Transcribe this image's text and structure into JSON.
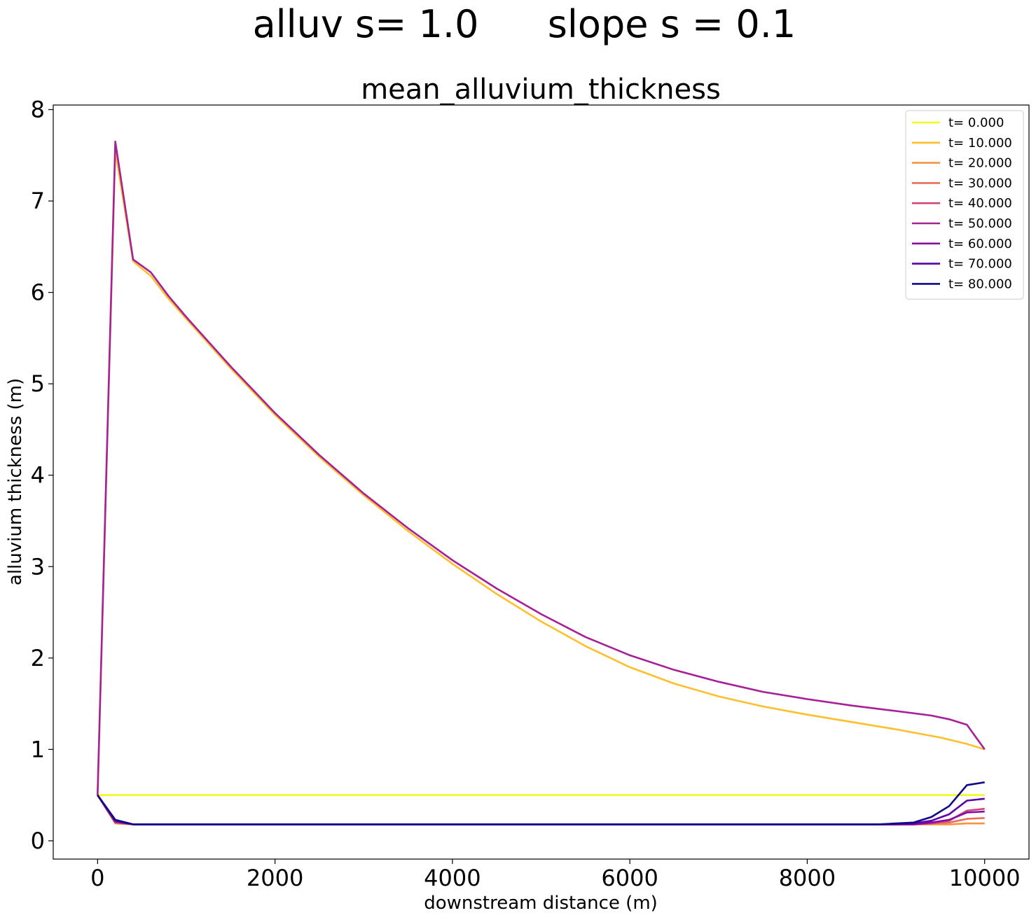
{
  "figure": {
    "suptitle_left": "alluv s= 1.0",
    "suptitle_right": "slope s = 0.1"
  },
  "chart_data": {
    "type": "line",
    "title": "mean_alluvium_thickness",
    "xlabel": "downstream distance (m)",
    "ylabel": "alluvium thickness (m)",
    "xlim": [
      -500,
      10500
    ],
    "ylim": [
      -0.2,
      8.05
    ],
    "xticks": [
      0,
      2000,
      4000,
      6000,
      8000,
      10000
    ],
    "yticks": [
      0,
      1,
      2,
      3,
      4,
      5,
      6,
      7,
      8
    ],
    "grid": false,
    "legend_position": "top-right",
    "series": [
      {
        "name": "t= 0.000",
        "color": "#f0f921",
        "x": [
          0,
          200,
          1000,
          5000,
          9000,
          9600,
          10000
        ],
        "y": [
          0.5,
          0.5,
          0.5,
          0.5,
          0.5,
          0.5,
          0.5
        ]
      },
      {
        "name": "t= 10.000",
        "color": "#fdbf2b",
        "x": [
          0,
          200,
          400,
          600,
          800,
          1000,
          1500,
          2000,
          2500,
          3000,
          3500,
          4000,
          4500,
          5000,
          5500,
          6000,
          6500,
          7000,
          7500,
          8000,
          8500,
          9000,
          9500,
          9800,
          10000
        ],
        "y": [
          0.5,
          7.55,
          6.34,
          6.18,
          5.93,
          5.71,
          5.17,
          4.66,
          4.2,
          3.78,
          3.39,
          3.03,
          2.7,
          2.4,
          2.13,
          1.9,
          1.72,
          1.58,
          1.47,
          1.38,
          1.3,
          1.22,
          1.13,
          1.06,
          1.0
        ]
      },
      {
        "name": "t= 20.000",
        "color": "#f79342",
        "x": [
          0,
          200,
          400,
          1000,
          5000,
          8800,
          9200,
          9400,
          9600,
          9800,
          10000
        ],
        "y": [
          0.5,
          0.19,
          0.18,
          0.18,
          0.18,
          0.18,
          0.18,
          0.18,
          0.18,
          0.19,
          0.19
        ]
      },
      {
        "name": "t= 30.000",
        "color": "#e76f5a",
        "x": [
          0,
          200,
          400,
          1000,
          5000,
          8800,
          9200,
          9400,
          9600,
          9800,
          10000
        ],
        "y": [
          0.5,
          0.2,
          0.18,
          0.18,
          0.18,
          0.18,
          0.18,
          0.19,
          0.2,
          0.24,
          0.25
        ]
      },
      {
        "name": "t= 40.000",
        "color": "#cc4778",
        "x": [
          0,
          200,
          400,
          1000,
          5000,
          8800,
          9200,
          9400,
          9600,
          9800,
          10000
        ],
        "y": [
          0.5,
          0.2,
          0.18,
          0.18,
          0.18,
          0.18,
          0.18,
          0.19,
          0.22,
          0.33,
          0.35
        ]
      },
      {
        "name": "t= 50.000",
        "color": "#a62098",
        "x": [
          0,
          200,
          400,
          600,
          800,
          1000,
          1500,
          2000,
          2500,
          3000,
          3500,
          4000,
          4500,
          5000,
          5500,
          6000,
          6500,
          7000,
          7500,
          8000,
          8500,
          9000,
          9400,
          9600,
          9800,
          10000
        ],
        "y": [
          0.5,
          7.65,
          6.36,
          6.22,
          5.96,
          5.73,
          5.19,
          4.68,
          4.22,
          3.8,
          3.42,
          3.07,
          2.76,
          2.48,
          2.23,
          2.03,
          1.87,
          1.74,
          1.63,
          1.55,
          1.48,
          1.42,
          1.37,
          1.33,
          1.27,
          1.0
        ]
      },
      {
        "name": "t= 60.000",
        "color": "#8b0aa5",
        "x": [
          0,
          200,
          400,
          1000,
          5000,
          8800,
          9200,
          9400,
          9600,
          9800,
          10000
        ],
        "y": [
          0.5,
          0.21,
          0.18,
          0.18,
          0.18,
          0.18,
          0.18,
          0.2,
          0.23,
          0.31,
          0.32
        ]
      },
      {
        "name": "t= 70.000",
        "color": "#5c01a6",
        "x": [
          0,
          200,
          400,
          1000,
          5000,
          8800,
          9000,
          9200,
          9400,
          9600,
          9800,
          10000
        ],
        "y": [
          0.5,
          0.22,
          0.18,
          0.18,
          0.18,
          0.18,
          0.18,
          0.19,
          0.22,
          0.29,
          0.44,
          0.46
        ]
      },
      {
        "name": "t= 80.000",
        "color": "#0d0887",
        "x": [
          0,
          200,
          400,
          1000,
          5000,
          8800,
          9000,
          9200,
          9400,
          9600,
          9800,
          10000
        ],
        "y": [
          0.5,
          0.23,
          0.18,
          0.18,
          0.18,
          0.18,
          0.19,
          0.2,
          0.26,
          0.38,
          0.61,
          0.64
        ]
      }
    ]
  }
}
